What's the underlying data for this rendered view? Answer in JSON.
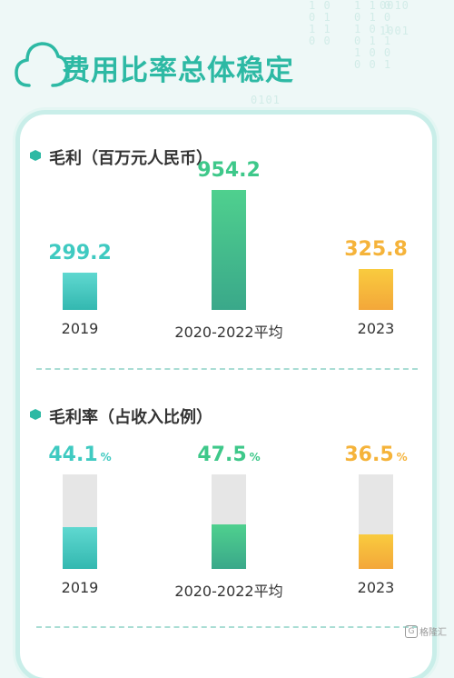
{
  "header": {
    "title": "费用比率总体稳定"
  },
  "colors": {
    "teal": "#3fcac1",
    "green": "#3ec88a",
    "orange": "#f5b33a",
    "title": "#2db9a4"
  },
  "background_code": [
    "0010",
    "1001",
    "0101"
  ],
  "chart_data": [
    {
      "type": "bar",
      "title": "毛利（百万元人民币）",
      "categories": [
        "2019",
        "2020-2022平均",
        "2023"
      ],
      "values": [
        299.2,
        954.2,
        325.8
      ],
      "value_labels": [
        "299.2",
        "954.2",
        "325.8"
      ],
      "grid": false
    },
    {
      "type": "bar",
      "title": "毛利率（占收入比例）",
      "categories": [
        "2019",
        "2020-2022平均",
        "2023"
      ],
      "values": [
        44.1,
        47.5,
        36.5
      ],
      "value_labels": [
        "44.1",
        "47.5",
        "36.5"
      ],
      "unit": "%",
      "ylim": [
        0,
        100
      ],
      "grid": false
    }
  ],
  "watermark": {
    "text": "格隆汇",
    "icon": "g-logo-icon"
  }
}
